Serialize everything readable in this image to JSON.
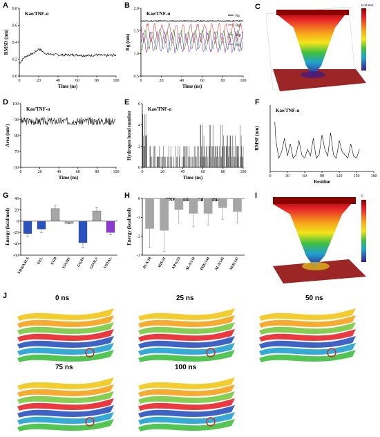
{
  "panels": {
    "A": {
      "label": "A",
      "title": "Kae/TNF-α",
      "ylabel": "RMSD (nm)",
      "xlabel": "Time (ns)",
      "xticks": [
        "0",
        "20",
        "40",
        "60",
        "80",
        "100"
      ],
      "yticks": [
        "0.0",
        "0.2",
        "0.4",
        "0.6",
        "0.8"
      ]
    },
    "B": {
      "label": "B",
      "title": "Kae/TNF-α",
      "ylabel": "Rg (nm)",
      "xlabel": "Time (ns)",
      "xticks": [
        "0",
        "20",
        "40",
        "60",
        "80",
        "100"
      ],
      "yticks": [
        "0.5",
        "1.0",
        "1.5",
        "2.0"
      ],
      "legend": [
        "Rg",
        "Rgx",
        "Rgy",
        "Rgz"
      ]
    },
    "C": {
      "label": "C",
      "cbar_title": "kcal/mol"
    },
    "D": {
      "label": "D",
      "title": "Kae/TNF-α",
      "ylabel": "Area (nm²)",
      "xlabel": "Time (ns)",
      "xticks": [
        "0",
        "20",
        "40",
        "60",
        "80",
        "100"
      ],
      "yticks": [
        "60",
        "70",
        "80",
        "90",
        "100"
      ]
    },
    "E": {
      "label": "E",
      "title": "Kae/TNF-α",
      "ylabel": "Hydrogen bond number",
      "xlabel": "Time (ns)",
      "xticks": [
        "0",
        "20",
        "40",
        "60",
        "80",
        "100"
      ],
      "yticks": [
        "0",
        "2",
        "4",
        "6"
      ]
    },
    "F": {
      "label": "F",
      "title": "Kae/TNF-α",
      "ylabel": "RMSF (nm)",
      "xlabel": "Residue",
      "xticks": [
        "0",
        "30",
        "60",
        "90",
        "120",
        "150",
        "180"
      ]
    },
    "G": {
      "label": "G",
      "ylabel": "Energy (kcal/mol)",
      "yticks": [
        "40",
        "20",
        "0",
        "-20",
        "-40",
        "-60"
      ]
    },
    "H": {
      "label": "H",
      "title": "TNF-α amino acid residues",
      "ylabel": "Energy (kcal/mol)",
      "yticks": [
        "0",
        "-1",
        "-2",
        "-3"
      ]
    },
    "I": {
      "label": "I",
      "cbar_title": "C"
    },
    "J": {
      "label": "J",
      "snapshots": [
        "0 ns",
        "25 ns",
        "50 ns",
        "75 ns",
        "100 ns"
      ]
    }
  },
  "chart_data": [
    {
      "panel": "A",
      "type": "line",
      "xlabel": "Time (ns)",
      "ylabel": "RMSD (nm)",
      "xlim": [
        0,
        100
      ],
      "ylim": [
        0,
        0.8
      ],
      "series": [
        {
          "values_x": [
            0,
            5,
            10,
            15,
            20,
            22,
            25,
            30,
            40,
            50,
            60,
            70,
            80,
            90,
            100
          ],
          "values_y": [
            0.15,
            0.22,
            0.25,
            0.27,
            0.32,
            0.31,
            0.28,
            0.26,
            0.25,
            0.25,
            0.25,
            0.24,
            0.25,
            0.24,
            0.25
          ]
        }
      ]
    },
    {
      "panel": "B",
      "type": "line",
      "xlabel": "Time (ns)",
      "ylabel": "Rg (nm)",
      "xlim": [
        0,
        100
      ],
      "ylim": [
        0.5,
        2.0
      ],
      "series": [
        {
          "name": "Rg",
          "color": "#000000",
          "mean": 1.72
        },
        {
          "name": "Rgx",
          "color": "#e04040",
          "mean": 1.45
        },
        {
          "name": "Rgy",
          "color": "#30a030",
          "mean": 1.3
        },
        {
          "name": "Rgz",
          "color": "#8a3ad0",
          "mean": 1.25
        }
      ]
    },
    {
      "panel": "D",
      "type": "line",
      "xlabel": "Time (ns)",
      "ylabel": "Area (nm²)",
      "xlim": [
        0,
        100
      ],
      "ylim": [
        60,
        100
      ],
      "series": [
        {
          "mean": 89
        }
      ]
    },
    {
      "panel": "E",
      "type": "bar",
      "xlabel": "Time (ns)",
      "ylabel": "Hydrogen bond number",
      "xlim": [
        0,
        100
      ],
      "ylim": [
        0,
        6
      ]
    },
    {
      "panel": "F",
      "type": "line",
      "xlabel": "Residue",
      "ylabel": "RMSF (nm)",
      "xlim": [
        0,
        180
      ],
      "series": [
        {
          "values_x": [
            8,
            10,
            15,
            20,
            25,
            30,
            35,
            40,
            45,
            50,
            55,
            60,
            65,
            70,
            75,
            80,
            85,
            90,
            95,
            100,
            105,
            110,
            115,
            120,
            125,
            130,
            135,
            140,
            145,
            150,
            155
          ],
          "values_y": [
            0.45,
            0.28,
            0.12,
            0.18,
            0.3,
            0.14,
            0.25,
            0.12,
            0.15,
            0.28,
            0.15,
            0.12,
            0.2,
            0.14,
            0.3,
            0.12,
            0.15,
            0.33,
            0.2,
            0.14,
            0.35,
            0.15,
            0.12,
            0.28,
            0.18,
            0.15,
            0.12,
            0.25,
            0.14,
            0.12,
            0.2
          ]
        }
      ]
    },
    {
      "panel": "G",
      "type": "bar",
      "ylabel": "Energy (kcal/mol)",
      "ylim": [
        -60,
        40
      ],
      "categories": [
        "VDWAALS",
        "EEL",
        "EGB",
        "ESURF",
        "GGAS",
        "GSOLV",
        "TOTAL"
      ],
      "values": [
        -22,
        -14,
        22,
        -4,
        -38,
        18,
        -20
      ],
      "errors": [
        5,
        6,
        6,
        1,
        8,
        6,
        4
      ],
      "colors": [
        "#2a52be",
        "#2a52be",
        "#a6a6a6",
        "#a6a6a6",
        "#2a52be",
        "#a6a6a6",
        "#8a3ad0"
      ]
    },
    {
      "panel": "H",
      "type": "bar",
      "title": "TNF-α amino acid residues",
      "ylabel": "Energy (kcal/mol)",
      "ylim": [
        -3,
        0
      ],
      "categories": [
        "ALA/18",
        "HIS/21",
        "ARG/23",
        "ALA/134",
        "PHE/144",
        "ALA/145",
        "SER/147"
      ],
      "values": [
        -1.6,
        -1.7,
        -0.6,
        -0.8,
        -0.8,
        -0.5,
        -0.7
      ],
      "errors": [
        1.0,
        1.1,
        0.7,
        0.7,
        0.6,
        0.6,
        0.6
      ]
    }
  ]
}
